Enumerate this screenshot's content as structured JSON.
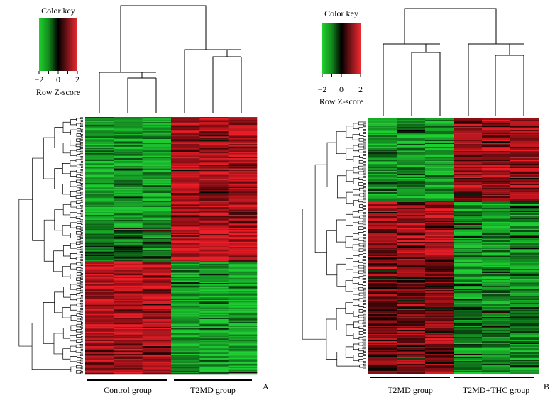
{
  "chart_data": [
    {
      "type": "heatmap",
      "panel_label": "A",
      "color_key": {
        "title": "Color key",
        "ticks": [
          "−2",
          "0",
          "2"
        ],
        "caption": "Row Z-score",
        "colors": [
          "#22cc33",
          "#000000",
          "#e8262e"
        ]
      },
      "groups": [
        "Control group",
        "T2MD group"
      ],
      "columns_per_group": 3,
      "rows": 200,
      "blocks": [
        {
          "rows": 0.43,
          "group_means": [
            -0.9,
            0.8
          ]
        },
        {
          "rows": 0.13,
          "group_means": [
            -0.6,
            1.0
          ]
        },
        {
          "rows": 0.44,
          "group_means": [
            0.8,
            -0.9
          ]
        }
      ]
    },
    {
      "type": "heatmap",
      "panel_label": "B",
      "color_key": {
        "title": "Color key",
        "ticks": [
          "−2",
          "0",
          "2"
        ],
        "caption": "Row Z-score",
        "colors": [
          "#22cc33",
          "#000000",
          "#e8262e"
        ]
      },
      "groups": [
        "T2MD group",
        "T2MD+THC group"
      ],
      "columns_per_group": 3,
      "rows": 180,
      "blocks": [
        {
          "rows": 0.33,
          "group_means": [
            -0.8,
            0.7
          ]
        },
        {
          "rows": 0.22,
          "group_means": [
            0.7,
            -0.8
          ]
        },
        {
          "rows": 0.45,
          "group_means": [
            0.5,
            -0.7
          ]
        }
      ]
    }
  ]
}
